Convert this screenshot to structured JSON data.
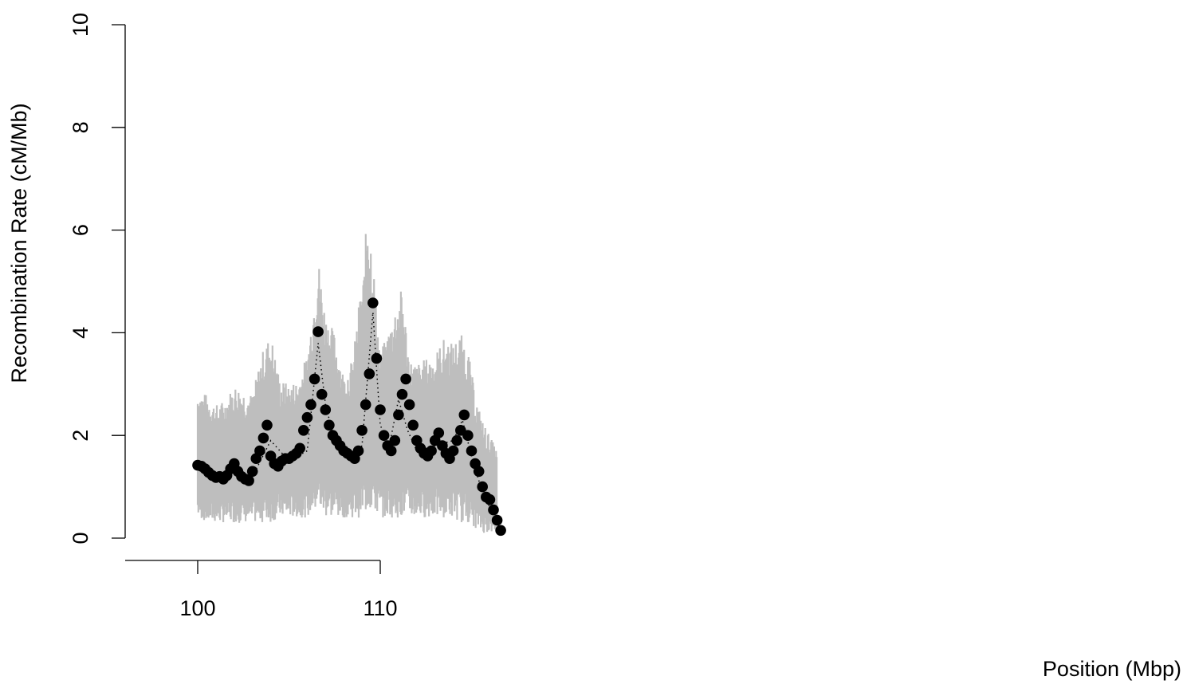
{
  "chart_data": {
    "type": "scatter",
    "title": "",
    "xlabel": "Position (Mbp)",
    "ylabel": "Recombination Rate (cM/Mb)",
    "xlim": [
      96,
      117
    ],
    "ylim": [
      0,
      10
    ],
    "x_ticks": [
      100,
      110
    ],
    "y_ticks": [
      0,
      2,
      4,
      6,
      8,
      10
    ],
    "grid": false,
    "legend": "none",
    "colors": {
      "points": "#000000",
      "band": "#bebebe",
      "axis": "#000000"
    },
    "series": [
      {
        "type": "band",
        "x": [
          100.0,
          100.5,
          101.0,
          101.5,
          102.0,
          102.5,
          103.0,
          103.5,
          104.0,
          104.5,
          105.0,
          105.5,
          106.0,
          106.3,
          106.6,
          107.0,
          107.5,
          108.0,
          108.5,
          108.9,
          109.1,
          109.3,
          109.6,
          110.0,
          110.4,
          110.8,
          111.2,
          111.6,
          112.0,
          112.5,
          113.0,
          113.5,
          114.0,
          114.4,
          114.8,
          115.2,
          115.6,
          116.0,
          116.4
        ],
        "upper": [
          2.9,
          2.8,
          2.6,
          2.7,
          3.0,
          2.9,
          2.8,
          3.6,
          4.0,
          3.1,
          3.0,
          3.1,
          3.6,
          4.5,
          5.5,
          4.4,
          4.0,
          3.2,
          3.5,
          4.8,
          5.2,
          6.6,
          5.5,
          3.6,
          4.0,
          4.5,
          4.9,
          3.5,
          3.4,
          3.5,
          3.6,
          3.9,
          3.8,
          4.0,
          3.7,
          2.8,
          2.3,
          2.0,
          1.7
        ],
        "lower": [
          0.4,
          0.3,
          0.3,
          0.3,
          0.3,
          0.3,
          0.3,
          0.3,
          0.3,
          0.4,
          0.4,
          0.4,
          0.4,
          0.5,
          0.5,
          0.4,
          0.4,
          0.4,
          0.4,
          0.4,
          0.4,
          0.5,
          0.5,
          0.4,
          0.4,
          0.4,
          0.4,
          0.4,
          0.4,
          0.4,
          0.4,
          0.4,
          0.4,
          0.3,
          0.3,
          0.2,
          0.1,
          0.1,
          0.1
        ]
      },
      {
        "type": "points",
        "x": [
          100.0,
          100.2,
          100.4,
          100.6,
          100.8,
          101.0,
          101.2,
          101.4,
          101.6,
          101.8,
          102.0,
          102.2,
          102.4,
          102.6,
          102.8,
          103.0,
          103.2,
          103.4,
          103.6,
          103.8,
          104.0,
          104.2,
          104.4,
          104.6,
          104.8,
          105.0,
          105.2,
          105.4,
          105.6,
          105.8,
          106.0,
          106.2,
          106.4,
          106.6,
          106.8,
          107.0,
          107.2,
          107.4,
          107.6,
          107.8,
          108.0,
          108.2,
          108.4,
          108.6,
          108.8,
          109.0,
          109.2,
          109.4,
          109.6,
          109.8,
          110.0,
          110.2,
          110.4,
          110.6,
          110.8,
          111.0,
          111.2,
          111.4,
          111.6,
          111.8,
          112.0,
          112.2,
          112.4,
          112.6,
          112.8,
          113.0,
          113.2,
          113.4,
          113.6,
          113.8,
          114.0,
          114.2,
          114.4,
          114.6,
          114.8,
          115.0,
          115.2,
          115.4,
          115.6,
          115.8,
          116.0,
          116.2,
          116.4,
          116.6
        ],
        "y": [
          1.42,
          1.4,
          1.35,
          1.28,
          1.22,
          1.18,
          1.2,
          1.15,
          1.22,
          1.35,
          1.45,
          1.3,
          1.2,
          1.15,
          1.12,
          1.3,
          1.55,
          1.7,
          1.95,
          2.2,
          1.6,
          1.45,
          1.4,
          1.5,
          1.55,
          1.55,
          1.6,
          1.65,
          1.75,
          2.1,
          2.35,
          2.6,
          3.1,
          4.02,
          2.8,
          2.5,
          2.2,
          2.0,
          1.9,
          1.8,
          1.7,
          1.65,
          1.6,
          1.55,
          1.7,
          2.1,
          2.6,
          3.2,
          4.58,
          3.5,
          2.5,
          2.0,
          1.8,
          1.7,
          1.9,
          2.4,
          2.8,
          3.1,
          2.6,
          2.2,
          1.9,
          1.75,
          1.65,
          1.6,
          1.7,
          1.9,
          2.05,
          1.8,
          1.65,
          1.55,
          1.7,
          1.9,
          2.1,
          2.4,
          2.0,
          1.7,
          1.45,
          1.3,
          1.0,
          0.8,
          0.75,
          0.55,
          0.35,
          0.15
        ]
      },
      {
        "type": "dotted_line",
        "x": [
          100.0,
          101.0,
          102.0,
          103.0,
          104.0,
          105.0,
          106.0,
          106.6,
          107.0,
          107.5,
          108.0,
          108.5,
          109.0,
          109.6,
          110.0,
          110.5,
          111.0,
          111.5,
          112.0,
          113.0,
          114.0,
          114.5,
          115.0,
          115.5,
          116.0,
          116.6
        ],
        "y": [
          1.4,
          1.25,
          1.3,
          1.2,
          1.9,
          1.5,
          1.7,
          3.8,
          2.6,
          1.9,
          1.7,
          1.6,
          1.8,
          4.4,
          2.2,
          1.8,
          2.7,
          2.1,
          1.7,
          1.8,
          1.9,
          2.3,
          1.6,
          1.0,
          0.6,
          0.15
        ]
      }
    ]
  }
}
